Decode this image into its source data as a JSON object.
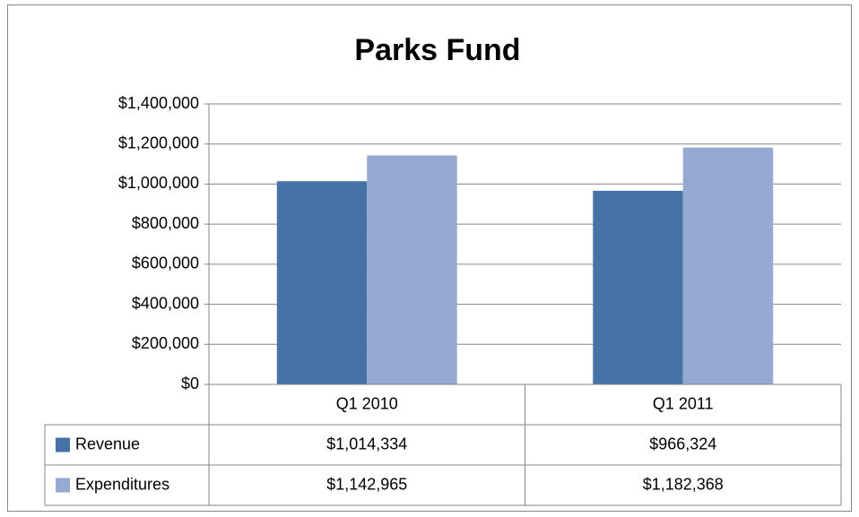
{
  "chart_data": {
    "type": "bar",
    "title": "Parks Fund",
    "categories": [
      "Q1 2010",
      "Q1 2011"
    ],
    "series": [
      {
        "name": "Revenue",
        "color": "#4572a7",
        "values": [
          1014334,
          966324
        ],
        "value_labels": [
          "$1,014,334",
          "$966,324"
        ]
      },
      {
        "name": "Expenditures",
        "color": "#95aad3",
        "values": [
          1142965,
          1182368
        ],
        "value_labels": [
          "$1,142,965",
          "$1,182,368"
        ]
      }
    ],
    "ylim": [
      0,
      1400000
    ],
    "yticks": [
      {
        "value": 0,
        "label": "$0"
      },
      {
        "value": 200000,
        "label": "$200,000"
      },
      {
        "value": 400000,
        "label": "$400,000"
      },
      {
        "value": 600000,
        "label": "$600,000"
      },
      {
        "value": 800000,
        "label": "$800,000"
      },
      {
        "value": 1000000,
        "label": "$1,000,000"
      },
      {
        "value": 1200000,
        "label": "$1,200,000"
      },
      {
        "value": 1400000,
        "label": "$1,400,000"
      }
    ],
    "grid": true
  }
}
